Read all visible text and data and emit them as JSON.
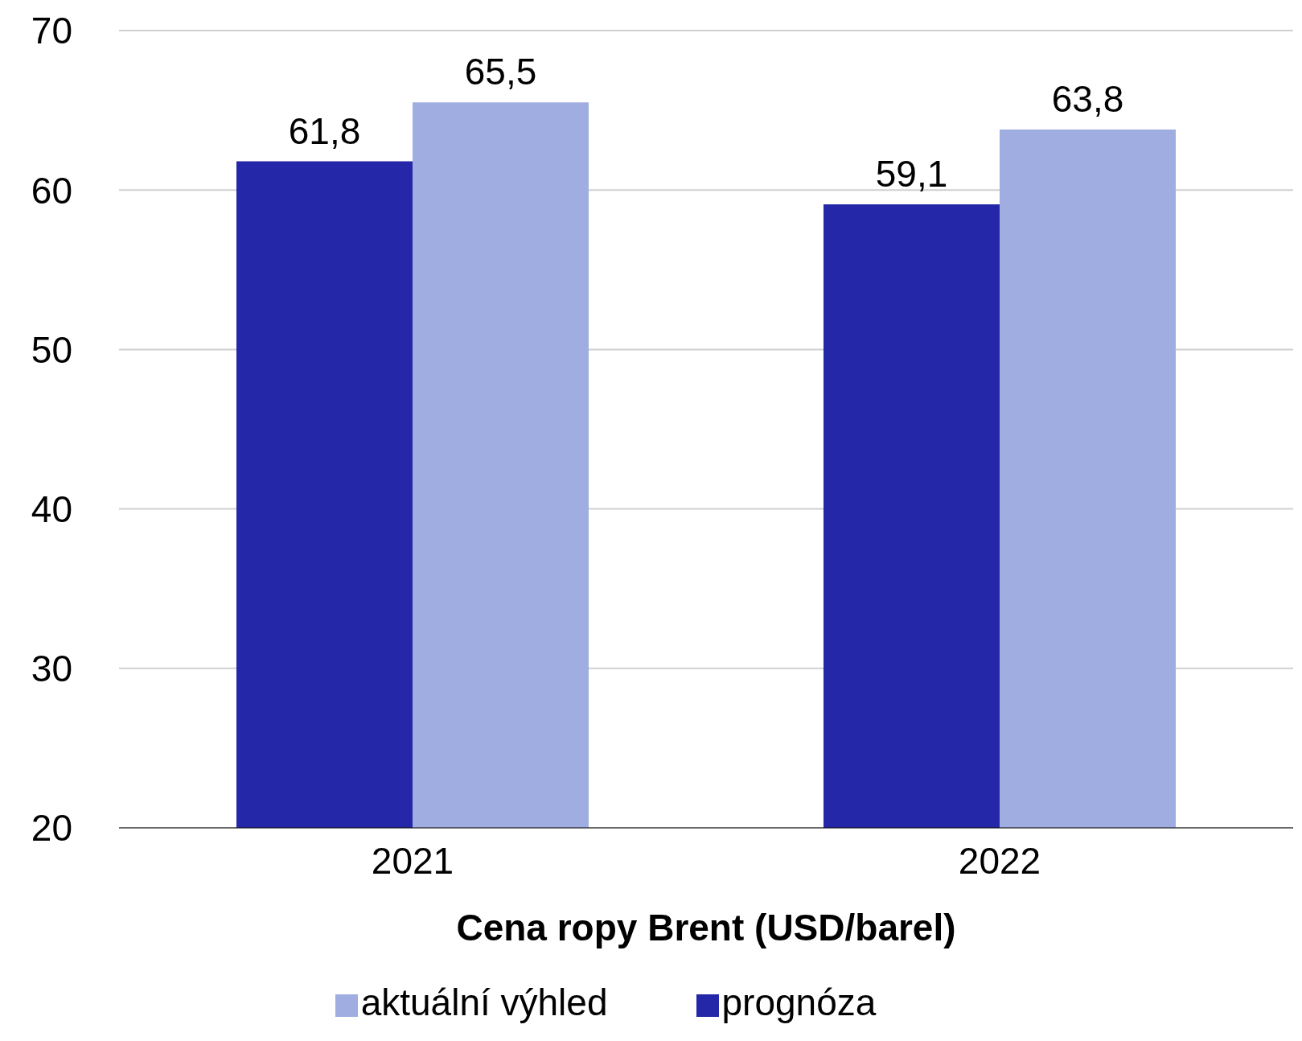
{
  "chart_data": {
    "type": "bar",
    "xlabel": "Cena ropy Brent  (USD/barel)",
    "categories": [
      "2021",
      "2022"
    ],
    "series": [
      {
        "name": "prognóza",
        "color": "#2427a8",
        "values": [
          61.8,
          59.1
        ],
        "value_labels": [
          "61,8",
          "59,1"
        ]
      },
      {
        "name": "aktuální výhled",
        "color": "#a0ade1",
        "values": [
          65.5,
          63.8
        ],
        "value_labels": [
          "65,5",
          "63,8"
        ]
      }
    ],
    "ylim": [
      20,
      70
    ],
    "yticks": [
      20,
      30,
      40,
      50,
      60,
      70
    ],
    "grid": "y",
    "legend": "bottom"
  }
}
